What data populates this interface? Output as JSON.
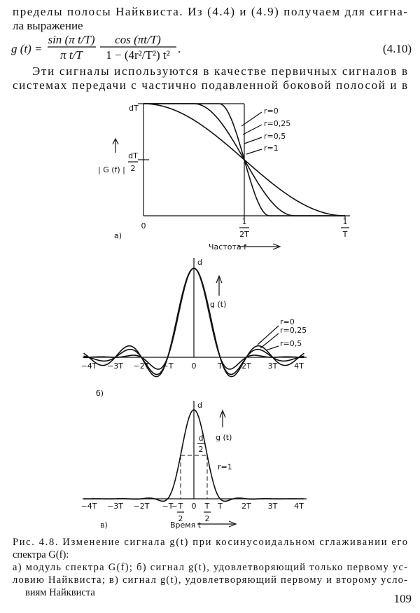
{
  "body": {
    "paragraph_1": [
      "пределы полосы Найквиста. Из (4.4) и (4.9) получаем для сигна-",
      "ла выражение"
    ],
    "formula": {
      "lhs": "g (t) =",
      "frac_1": {
        "num": "sin (π t/T)",
        "den": "π t/T"
      },
      "frac_2": {
        "num": "cos (πt/T)",
        "den": "1 − (4r²/T²) t²"
      },
      "end": ".",
      "number": "(4.10)"
    },
    "paragraph_2": [
      "Эти сигналы используются в качестве первичных сигналов в",
      "системах передачи с частично подавленной боковой полосой и в"
    ]
  },
  "figure_a": {
    "y_top": "dT",
    "y_mid": {
      "num": "dT",
      "den": "2"
    },
    "y_label": "| G (f) |",
    "curve_labels": [
      "r=0",
      "r=0,25",
      "r=0,5",
      "r=1"
    ],
    "x_ticks": [
      "0",
      {
        "num": "1",
        "den": "2T"
      },
      {
        "num": "1",
        "den": "T"
      }
    ],
    "panel": "а)",
    "x_label": "Частота  f"
  },
  "figure_b": {
    "peak": "d",
    "y_label": "g (t)",
    "curve_labels": [
      "r=0",
      "r=0,25",
      "r=0,5"
    ],
    "x_ticks": [
      "−4T",
      "−3T",
      "−2T",
      "−T",
      "0",
      "T",
      "2T",
      "3T",
      "4T"
    ],
    "panel": "б)"
  },
  "figure_c": {
    "peak": "d",
    "half": {
      "num": "d",
      "den": "2"
    },
    "y_label": "g (t)",
    "curve_label": "r=1",
    "x_ticks": [
      "−4T",
      "−3T",
      "−2T",
      "−T",
      "0",
      "T",
      "2T",
      "3T",
      "4T"
    ],
    "half_ticks": [
      {
        "sign": "−",
        "num": "T",
        "den": "2"
      },
      {
        "num": "T",
        "den": "2"
      }
    ],
    "panel": "в)",
    "x_label": "Время  t"
  },
  "caption": {
    "lines": [
      "Рис. 4.8. Изменение сигнала g(t) при косинусоидальном сглаживании его",
      "спектра G(f):",
      "а) модуль спектра G(f); б) сигнал g(t), удовлетворяющий только первому ус-",
      "ловию Найквиста; в) сигнал g(t), удовлетворяющий первому и второму усло-",
      "виям Найквиста"
    ]
  },
  "page_number": "109"
}
